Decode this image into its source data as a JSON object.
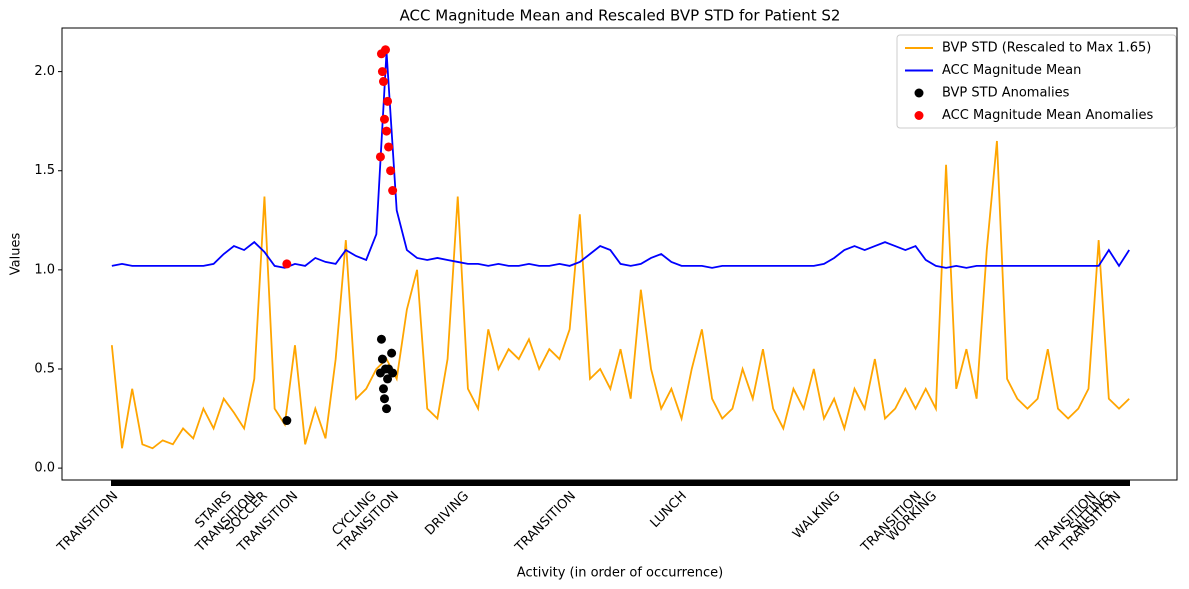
{
  "chart_data": {
    "type": "line",
    "title": "ACC Magnitude Mean and Rescaled BVP STD for Patient S2",
    "x_label": "Activity (in order of occurrence)",
    "y_label": "Values",
    "xlim": [
      -49,
      1047
    ],
    "ylim": [
      -0.06,
      2.22
    ],
    "yticks": [
      {
        "value": 0,
        "label": "0.0"
      },
      {
        "value": 0.5,
        "label": "0.5"
      },
      {
        "value": 1,
        "label": "1.0"
      },
      {
        "value": 1.5,
        "label": "1.5"
      },
      {
        "value": 2,
        "label": "2.0"
      }
    ],
    "xticks": [
      {
        "value": 0,
        "label": "TRANSITION"
      },
      {
        "value": 112,
        "label": "STAIRS"
      },
      {
        "value": 136,
        "label": "TRANSITION"
      },
      {
        "value": 147,
        "label": "SOCCER"
      },
      {
        "value": 177,
        "label": "TRANSITION"
      },
      {
        "value": 254,
        "label": "CYCLING"
      },
      {
        "value": 276,
        "label": "TRANSITION"
      },
      {
        "value": 345,
        "label": "DRIVING"
      },
      {
        "value": 450,
        "label": "TRANSITION"
      },
      {
        "value": 559,
        "label": "LUNCH"
      },
      {
        "value": 710,
        "label": "WALKING"
      },
      {
        "value": 790,
        "label": "TRANSITION"
      },
      {
        "value": 805,
        "label": "WORKING"
      },
      {
        "value": 962,
        "label": "TRANSITION"
      },
      {
        "value": 976,
        "label": "SITTING"
      },
      {
        "value": 986,
        "label": "TRANSITION"
      }
    ],
    "legend": "upper right",
    "x": [
      0,
      10,
      20,
      30,
      40,
      50,
      60,
      70,
      80,
      90,
      100,
      110,
      120,
      130,
      140,
      150,
      160,
      170,
      180,
      190,
      200,
      210,
      220,
      230,
      240,
      250,
      260,
      270,
      280,
      290,
      300,
      310,
      320,
      330,
      340,
      350,
      360,
      370,
      380,
      390,
      400,
      410,
      420,
      430,
      440,
      450,
      460,
      470,
      480,
      490,
      500,
      510,
      520,
      530,
      540,
      550,
      560,
      570,
      580,
      590,
      600,
      610,
      620,
      630,
      640,
      650,
      660,
      670,
      680,
      690,
      700,
      710,
      720,
      730,
      740,
      750,
      760,
      770,
      780,
      790,
      800,
      810,
      820,
      830,
      840,
      850,
      860,
      870,
      880,
      890,
      900,
      910,
      920,
      930,
      940,
      950,
      960,
      970,
      980,
      990,
      1000
    ],
    "series": [
      {
        "name": "BVP STD (Rescaled to Max 1.65)",
        "type": "line",
        "color": "#ffa500",
        "values": [
          0.62,
          0.1,
          0.4,
          0.12,
          0.1,
          0.14,
          0.12,
          0.2,
          0.15,
          0.3,
          0.2,
          0.35,
          0.28,
          0.2,
          0.45,
          1.37,
          0.3,
          0.22,
          0.62,
          0.12,
          0.3,
          0.15,
          0.55,
          1.15,
          0.35,
          0.4,
          0.5,
          0.55,
          0.45,
          0.8,
          1.0,
          0.3,
          0.25,
          0.55,
          1.37,
          0.4,
          0.3,
          0.7,
          0.5,
          0.6,
          0.55,
          0.65,
          0.5,
          0.6,
          0.55,
          0.7,
          1.28,
          0.45,
          0.5,
          0.4,
          0.6,
          0.35,
          0.9,
          0.5,
          0.3,
          0.4,
          0.25,
          0.5,
          0.7,
          0.35,
          0.25,
          0.3,
          0.5,
          0.35,
          0.6,
          0.3,
          0.2,
          0.4,
          0.3,
          0.5,
          0.25,
          0.35,
          0.2,
          0.4,
          0.3,
          0.55,
          0.25,
          0.3,
          0.4,
          0.3,
          0.4,
          0.3,
          1.53,
          0.4,
          0.6,
          0.35,
          1.1,
          1.65,
          0.45,
          0.35,
          0.3,
          0.35,
          0.6,
          0.3,
          0.25,
          0.3,
          0.4,
          1.15,
          0.35,
          0.3,
          0.35
        ]
      },
      {
        "name": "ACC Magnitude Mean",
        "type": "line",
        "color": "#0000ff",
        "values": [
          1.02,
          1.03,
          1.02,
          1.02,
          1.02,
          1.02,
          1.02,
          1.02,
          1.02,
          1.02,
          1.03,
          1.08,
          1.12,
          1.1,
          1.14,
          1.09,
          1.02,
          1.01,
          1.03,
          1.02,
          1.06,
          1.04,
          1.03,
          1.1,
          1.07,
          1.05,
          1.18,
          2.1,
          1.3,
          1.1,
          1.06,
          1.05,
          1.06,
          1.05,
          1.04,
          1.03,
          1.03,
          1.02,
          1.03,
          1.02,
          1.02,
          1.03,
          1.02,
          1.02,
          1.03,
          1.02,
          1.04,
          1.08,
          1.12,
          1.1,
          1.03,
          1.02,
          1.03,
          1.06,
          1.08,
          1.04,
          1.02,
          1.02,
          1.02,
          1.01,
          1.02,
          1.02,
          1.02,
          1.02,
          1.02,
          1.02,
          1.02,
          1.02,
          1.02,
          1.02,
          1.03,
          1.06,
          1.1,
          1.12,
          1.1,
          1.12,
          1.14,
          1.12,
          1.1,
          1.12,
          1.05,
          1.02,
          1.01,
          1.02,
          1.01,
          1.02,
          1.02,
          1.02,
          1.02,
          1.02,
          1.02,
          1.02,
          1.02,
          1.02,
          1.02,
          1.02,
          1.02,
          1.02,
          1.1,
          1.02,
          1.1
        ]
      },
      {
        "name": "BVP STD Anomalies",
        "type": "scatter",
        "color": "#000000",
        "x": [
          172,
          264,
          265,
          266,
          267,
          268,
          269,
          270,
          271,
          272,
          275,
          276
        ],
        "values": [
          0.24,
          0.48,
          0.65,
          0.55,
          0.4,
          0.35,
          0.5,
          0.3,
          0.45,
          0.5,
          0.58,
          0.48
        ]
      },
      {
        "name": "ACC Magnitude Mean Anomalies",
        "type": "scatter",
        "color": "#ff0000",
        "x": [
          172,
          264,
          265,
          266,
          267,
          268,
          269,
          270,
          271,
          272,
          274,
          276
        ],
        "values": [
          1.03,
          1.57,
          2.09,
          2.0,
          1.95,
          1.76,
          2.11,
          1.7,
          1.85,
          1.62,
          1.5,
          1.4
        ]
      }
    ]
  }
}
